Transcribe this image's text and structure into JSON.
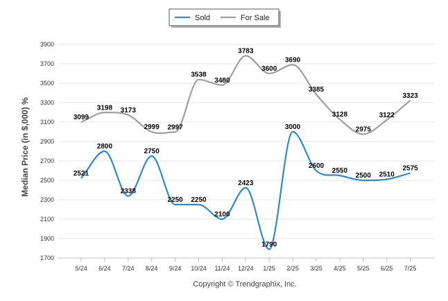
{
  "chart_data": {
    "type": "line",
    "categories": [
      "5/24",
      "6/24",
      "7/24",
      "8/24",
      "9/24",
      "10/24",
      "11/24",
      "12/24",
      "1/25",
      "2/25",
      "3/25",
      "4/25",
      "5/25",
      "6/25",
      "7/25"
    ],
    "series": [
      {
        "name": "Sold",
        "color": "#2b8ad0",
        "values": [
          2521,
          2800,
          2338,
          2750,
          2250,
          2250,
          2100,
          2423,
          1790,
          3000,
          2600,
          2550,
          2500,
          2510,
          2575
        ]
      },
      {
        "name": "For Sale",
        "color": "#9e9e9e",
        "values": [
          3099,
          3198,
          3173,
          2999,
          2997,
          3538,
          3480,
          3783,
          3600,
          3690,
          3385,
          3128,
          2975,
          3122,
          3323
        ]
      }
    ],
    "ylabel": "Median Price (in $,000) %",
    "xlabel": "",
    "ylim": [
      1700,
      3900
    ],
    "yticks": [
      1700,
      1900,
      2100,
      2300,
      2500,
      2700,
      2900,
      3100,
      3300,
      3500,
      3700,
      3900
    ],
    "grid": true,
    "legend": "top-center",
    "credit": "Copyright © Trendgraphix, Inc."
  }
}
